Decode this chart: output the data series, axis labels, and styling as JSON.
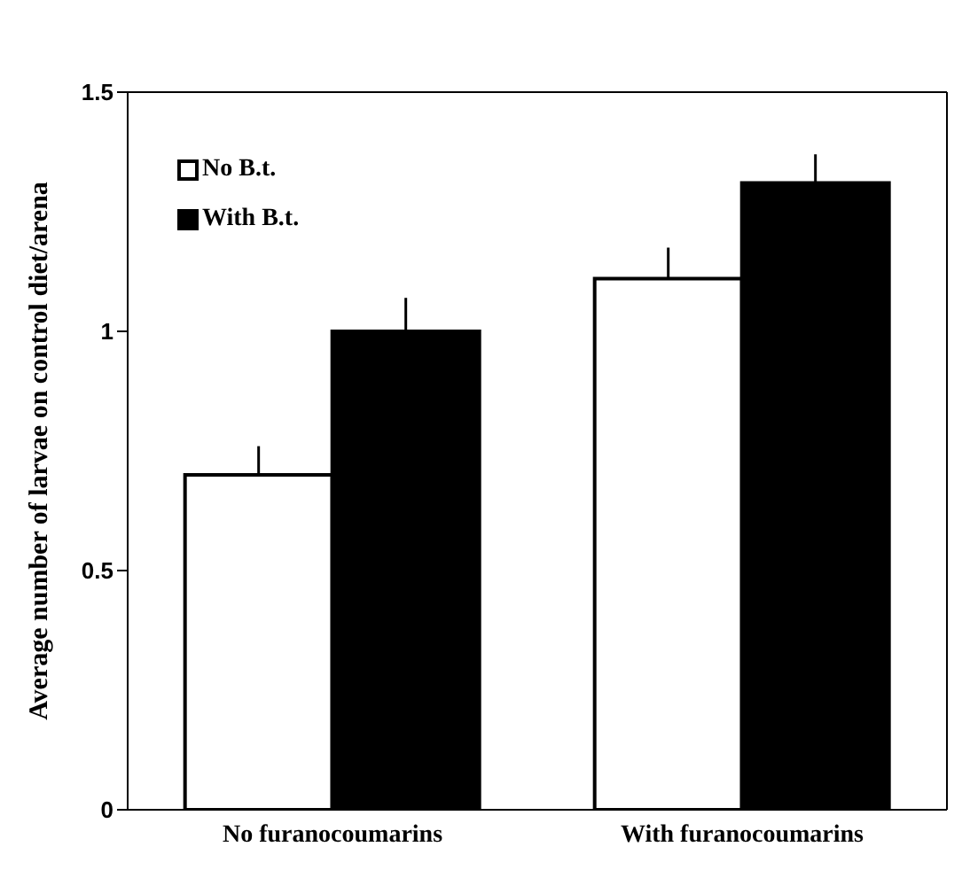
{
  "chart_data": {
    "type": "bar",
    "ylabel": "Average number of larvae on control diet/arena",
    "categories": [
      "No furanocoumarins",
      "With furanocoumarins"
    ],
    "series": [
      {
        "name": "No B.t.",
        "color": "#ffffff",
        "values": [
          0.7,
          1.11
        ],
        "errors": [
          [
            0.7,
            0.76
          ],
          [
            1.11,
            1.175
          ]
        ]
      },
      {
        "name": "With B.t.",
        "color": "#000000",
        "values": [
          1.0,
          1.31
        ],
        "errors": [
          [
            1.0,
            1.07
          ],
          [
            1.31,
            1.37
          ]
        ]
      }
    ],
    "ylim": [
      0,
      1.5
    ],
    "yticks": [
      0,
      0.5,
      1,
      1.5
    ],
    "grid": false,
    "legend": "top left"
  }
}
